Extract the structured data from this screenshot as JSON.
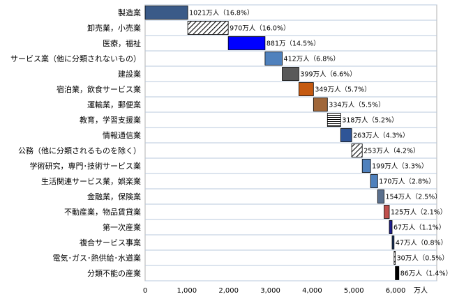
{
  "chart_data": {
    "type": "bar",
    "orientation": "horizontal",
    "style": "waterfall-cumulative",
    "categories": [
      "製造業",
      "卸売業，小売業",
      "医療，福祉",
      "サービス業（他に分類されないもの）",
      "建設業",
      "宿泊業，飲食サービス業",
      "運輸業，郵便業",
      "教育，学習支援業",
      "情報通信業",
      "公務（他に分類されるものを除く）",
      "学術研究，専門･技術サービス業",
      "生活関連サービス業，娯楽業",
      "金融業，保険業",
      "不動産業，物品賃貸業",
      "第一次産業",
      "複合サービス事業",
      "電気･ガス･熱供給･水道業",
      "分類不能の産業"
    ],
    "values": [
      1021,
      970,
      881,
      412,
      399,
      349,
      334,
      318,
      263,
      253,
      199,
      170,
      154,
      125,
      67,
      47,
      30,
      86
    ],
    "data_labels": [
      "1021万人（16.8%）",
      "970万人（16.0%）",
      "881万（14.5%）",
      "412万人（6.8%）",
      "399万人（6.6%）",
      "349万人（5.7%）",
      "334万人（5.5%）",
      "318万人（5.2%）",
      "263万人（4.3%）",
      "253万人（4.2%）",
      "199万人（3.3%）",
      "170万人（2.8%）",
      "154万人（2.5%）",
      "125万人（2.1%）",
      "67万人（1.1%）",
      "47万人（0.8%）",
      "30万人（0.5%）",
      "86万人（1.4%）"
    ],
    "fills": [
      "#3a5a88",
      "hatch",
      "#0000ff",
      "#4f81bd",
      "#595959",
      "#c55a11",
      "#a0673a",
      "hstripe",
      "#2f5597",
      "hatch",
      "#4f81bd",
      "#4f81bd",
      "#5a6f8c",
      "#c0504d",
      "#1f1f8f",
      "#1f3864",
      "hatch",
      "#000000"
    ],
    "x_ticks": [
      "0",
      "1,000",
      "2,000",
      "3,000",
      "4,000",
      "5,000",
      "6,000"
    ],
    "x_unit": "万人",
    "xlim": [
      0,
      7000
    ],
    "grid": "horizontal-only"
  }
}
